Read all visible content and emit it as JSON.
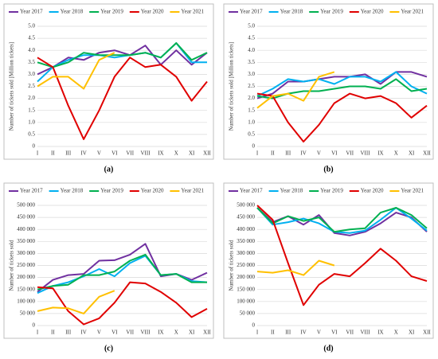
{
  "chart_data": [
    {
      "type": "line",
      "caption": "(a)",
      "ylabel": "Number of  tickets sold [Million tickets]",
      "categories": [
        "I",
        "II",
        "III",
        "IV",
        "V",
        "VI",
        "VII",
        "VIII",
        "IX",
        "X",
        "XI",
        "XII"
      ],
      "ylim": [
        0,
        5
      ],
      "yticks": [
        0,
        0.5,
        {
          "value": 1,
          "label": "1.0"
        },
        1.5,
        {
          "value": 2,
          "label": "2.0"
        },
        2.5,
        {
          "value": 3,
          "label": "3.0"
        },
        3.5,
        {
          "value": 4,
          "label": "4.0"
        },
        4.5,
        {
          "value": 5,
          "label": "5.0"
        }
      ],
      "grid": true,
      "series": [
        {
          "name": "Year 2017",
          "color": "#7030a0",
          "values": [
            3.0,
            3.3,
            3.7,
            3.6,
            3.9,
            4.0,
            3.8,
            4.2,
            3.4,
            4.0,
            3.4,
            3.9
          ]
        },
        {
          "name": "Year 2018",
          "color": "#00b0f0",
          "values": [
            2.7,
            3.3,
            3.6,
            3.8,
            3.8,
            3.7,
            3.8,
            3.9,
            3.7,
            4.3,
            3.5,
            3.5
          ]
        },
        {
          "name": "Year 2019",
          "color": "#00b050",
          "values": [
            3.5,
            3.3,
            3.5,
            3.9,
            3.8,
            3.8,
            3.8,
            3.9,
            3.7,
            4.3,
            3.6,
            3.9
          ]
        },
        {
          "name": "Year 2020",
          "color": "#e00000",
          "values": [
            3.7,
            3.3,
            1.7,
            0.3,
            1.5,
            2.9,
            3.7,
            3.3,
            3.4,
            2.9,
            1.9,
            2.7
          ]
        },
        {
          "name": "Year 2021",
          "color": "#ffc000",
          "values": [
            2.5,
            2.9,
            2.9,
            2.4,
            3.6,
            3.9,
            null,
            null,
            null,
            null,
            null,
            null
          ]
        }
      ]
    },
    {
      "type": "line",
      "caption": "(b)",
      "ylabel": "Number of  tickets sold [Million tickets]",
      "categories": [
        "I",
        "II",
        "III",
        "IV",
        "V",
        "VI",
        "VII",
        "VIII",
        "IX",
        "X",
        "XI",
        "XII"
      ],
      "ylim": [
        0,
        5
      ],
      "yticks": [
        0,
        0.5,
        {
          "value": 1,
          "label": "1.0"
        },
        1.5,
        {
          "value": 2,
          "label": "2.0"
        },
        2.5,
        {
          "value": 3,
          "label": "3.0"
        },
        3.5,
        {
          "value": 4,
          "label": "4.0"
        },
        4.5,
        {
          "value": 5,
          "label": "5.0"
        }
      ],
      "grid": true,
      "series": [
        {
          "name": "Year 2017",
          "color": "#7030a0",
          "values": [
            2.0,
            2.2,
            2.7,
            2.7,
            2.8,
            2.9,
            2.9,
            3.0,
            2.6,
            3.1,
            3.1,
            2.9
          ]
        },
        {
          "name": "Year 2018",
          "color": "#00b0f0",
          "values": [
            2.1,
            2.4,
            2.8,
            2.7,
            2.8,
            2.6,
            2.9,
            2.9,
            2.7,
            3.1,
            2.5,
            2.2
          ]
        },
        {
          "name": "Year 2019",
          "color": "#00b050",
          "values": [
            2.1,
            2.0,
            2.2,
            2.3,
            2.3,
            2.4,
            2.5,
            2.5,
            2.4,
            2.8,
            2.3,
            2.4
          ]
        },
        {
          "name": "Year 2020",
          "color": "#e00000",
          "values": [
            2.2,
            2.1,
            1.0,
            0.2,
            0.9,
            1.8,
            2.2,
            2.0,
            2.1,
            1.8,
            1.2,
            1.7
          ]
        },
        {
          "name": "Year 2021",
          "color": "#ffc000",
          "values": [
            1.6,
            2.1,
            2.2,
            1.9,
            2.9,
            3.1,
            null,
            null,
            null,
            null,
            null,
            null
          ]
        }
      ]
    },
    {
      "type": "line",
      "caption": "(c)",
      "ylabel": "Number of  tickets sold",
      "categories": [
        "I",
        "II",
        "III",
        "IV",
        "V",
        "VI",
        "VII",
        "VIII",
        "IX",
        "X",
        "XI",
        "XII"
      ],
      "ylim": [
        0,
        500000
      ],
      "yticks": [
        0,
        {
          "value": 50000,
          "label": "50 000"
        },
        {
          "value": 100000,
          "label": "100 000"
        },
        {
          "value": 150000,
          "label": "150 000"
        },
        {
          "value": 200000,
          "label": "200 000"
        },
        {
          "value": 250000,
          "label": "250 000"
        },
        {
          "value": 300000,
          "label": "300 000"
        },
        {
          "value": 350000,
          "label": "350 000"
        },
        {
          "value": 400000,
          "label": "400 000"
        },
        {
          "value": 450000,
          "label": "450 000"
        },
        {
          "value": 500000,
          "label": "500 000"
        }
      ],
      "grid": true,
      "series": [
        {
          "name": "Year 2017",
          "color": "#7030a0",
          "values": [
            140000,
            190000,
            210000,
            215000,
            270000,
            272000,
            295000,
            340000,
            205000,
            215000,
            190000,
            220000
          ]
        },
        {
          "name": "Year 2018",
          "color": "#00b0f0",
          "values": [
            135000,
            165000,
            180000,
            205000,
            235000,
            205000,
            260000,
            290000,
            210000,
            215000,
            185000,
            180000
          ]
        },
        {
          "name": "Year 2019",
          "color": "#00b050",
          "values": [
            150000,
            165000,
            170000,
            210000,
            210000,
            225000,
            270000,
            295000,
            210000,
            215000,
            180000,
            180000
          ]
        },
        {
          "name": "Year 2020",
          "color": "#e00000",
          "values": [
            160000,
            155000,
            60000,
            5000,
            30000,
            95000,
            180000,
            175000,
            140000,
            95000,
            35000,
            70000
          ]
        },
        {
          "name": "Year 2021",
          "color": "#ffc000",
          "values": [
            60000,
            75000,
            72000,
            50000,
            120000,
            145000,
            null,
            null,
            null,
            null,
            null,
            null
          ]
        }
      ]
    },
    {
      "type": "line",
      "caption": "(d)",
      "ylabel": "Number of  tickets sold",
      "categories": [
        "I",
        "II",
        "III",
        "IV",
        "V",
        "VI",
        "VII",
        "VIII",
        "IX",
        "X",
        "XI",
        "XII"
      ],
      "ylim": [
        0,
        500000
      ],
      "yticks": [
        0,
        {
          "value": 50000,
          "label": "50 000"
        },
        {
          "value": 100000,
          "label": "100 000"
        },
        {
          "value": 150000,
          "label": "150 000"
        },
        {
          "value": 200000,
          "label": "200 000"
        },
        {
          "value": 250000,
          "label": "250 000"
        },
        {
          "value": 300000,
          "label": "300 000"
        },
        {
          "value": 350000,
          "label": "350 000"
        },
        {
          "value": 400000,
          "label": "400 000"
        },
        {
          "value": 450000,
          "label": "450 000"
        },
        {
          "value": 500000,
          "label": "500 000"
        }
      ],
      "grid": true,
      "series": [
        {
          "name": "Year 2017",
          "color": "#7030a0",
          "values": [
            490000,
            430000,
            455000,
            420000,
            460000,
            385000,
            375000,
            390000,
            425000,
            470000,
            450000,
            390000
          ]
        },
        {
          "name": "Year 2018",
          "color": "#00b0f0",
          "values": [
            490000,
            420000,
            430000,
            445000,
            425000,
            390000,
            385000,
            395000,
            440000,
            490000,
            445000,
            395000
          ]
        },
        {
          "name": "Year 2019",
          "color": "#00b050",
          "values": [
            490000,
            425000,
            455000,
            435000,
            450000,
            390000,
            400000,
            405000,
            470000,
            490000,
            460000,
            405000
          ]
        },
        {
          "name": "Year 2020",
          "color": "#e00000",
          "values": [
            500000,
            440000,
            260000,
            85000,
            170000,
            215000,
            205000,
            260000,
            320000,
            270000,
            205000,
            185000
          ]
        },
        {
          "name": "Year 2021",
          "color": "#ffc000",
          "values": [
            225000,
            220000,
            230000,
            210000,
            270000,
            250000,
            null,
            null,
            null,
            null,
            null,
            null
          ]
        }
      ]
    }
  ]
}
